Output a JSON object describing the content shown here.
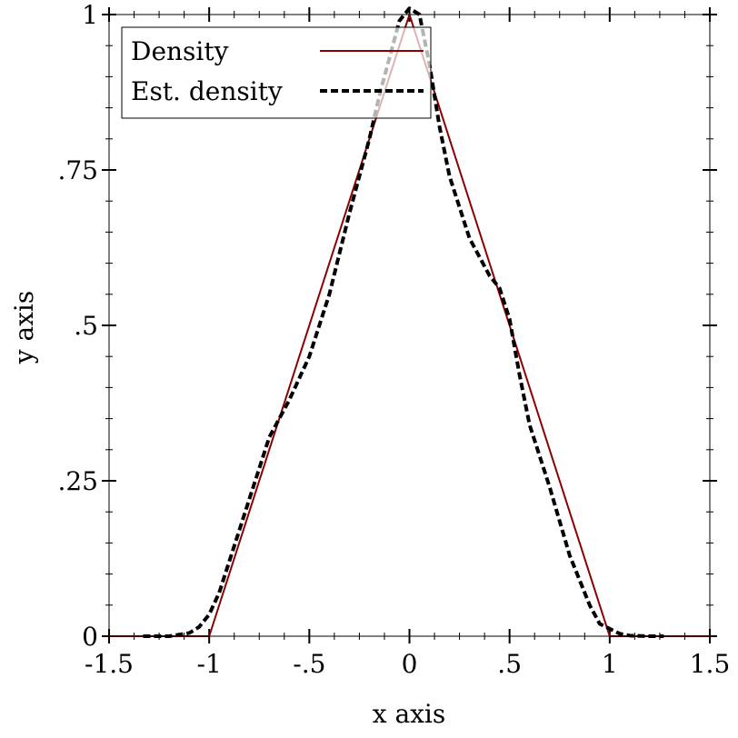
{
  "chart_data": {
    "type": "line",
    "xlabel": "x axis",
    "ylabel": "y axis",
    "xlim": [
      -1.5,
      1.5
    ],
    "ylim": [
      0,
      1.0
    ],
    "x_ticks": [
      {
        "value": -1.5,
        "label": "-1.5"
      },
      {
        "value": -1.0,
        "label": "-1"
      },
      {
        "value": -0.5,
        "label": "-.5"
      },
      {
        "value": 0.0,
        "label": "0"
      },
      {
        "value": 0.5,
        "label": ".5"
      },
      {
        "value": 1.0,
        "label": "1"
      },
      {
        "value": 1.5,
        "label": "1.5"
      }
    ],
    "y_ticks": [
      {
        "value": 0.0,
        "label": "0"
      },
      {
        "value": 0.25,
        "label": ".25"
      },
      {
        "value": 0.5,
        "label": ".5"
      },
      {
        "value": 0.75,
        "label": ".75"
      },
      {
        "value": 1.0,
        "label": "1"
      }
    ],
    "legend_placement": "top-left",
    "grid": false,
    "series": [
      {
        "name": "Density",
        "style": "solid",
        "color": "#8b0000",
        "x": [
          -1.5,
          -1.0,
          0.0,
          1.0,
          1.5
        ],
        "y": [
          0,
          0,
          1.0,
          0,
          0
        ]
      },
      {
        "name": "Est. density",
        "style": "dashed",
        "color": "#000000",
        "x": [
          -1.33,
          -1.2,
          -1.1,
          -1.05,
          -1.0,
          -0.95,
          -0.9,
          -0.8,
          -0.7,
          -0.6,
          -0.5,
          -0.4,
          -0.3,
          -0.2,
          -0.15,
          -0.1,
          -0.05,
          0.0,
          0.05,
          0.1,
          0.15,
          0.2,
          0.3,
          0.4,
          0.45,
          0.5,
          0.55,
          0.6,
          0.7,
          0.8,
          0.9,
          0.95,
          1.0,
          1.05,
          1.1,
          1.2,
          1.27
        ],
        "y": [
          0,
          0,
          0.005,
          0.015,
          0.035,
          0.07,
          0.12,
          0.22,
          0.32,
          0.38,
          0.45,
          0.55,
          0.68,
          0.8,
          0.87,
          0.93,
          0.99,
          1.01,
          1.0,
          0.92,
          0.82,
          0.74,
          0.64,
          0.58,
          0.56,
          0.51,
          0.42,
          0.34,
          0.24,
          0.13,
          0.05,
          0.02,
          0.012,
          0.004,
          0.001,
          0,
          0
        ]
      }
    ]
  }
}
